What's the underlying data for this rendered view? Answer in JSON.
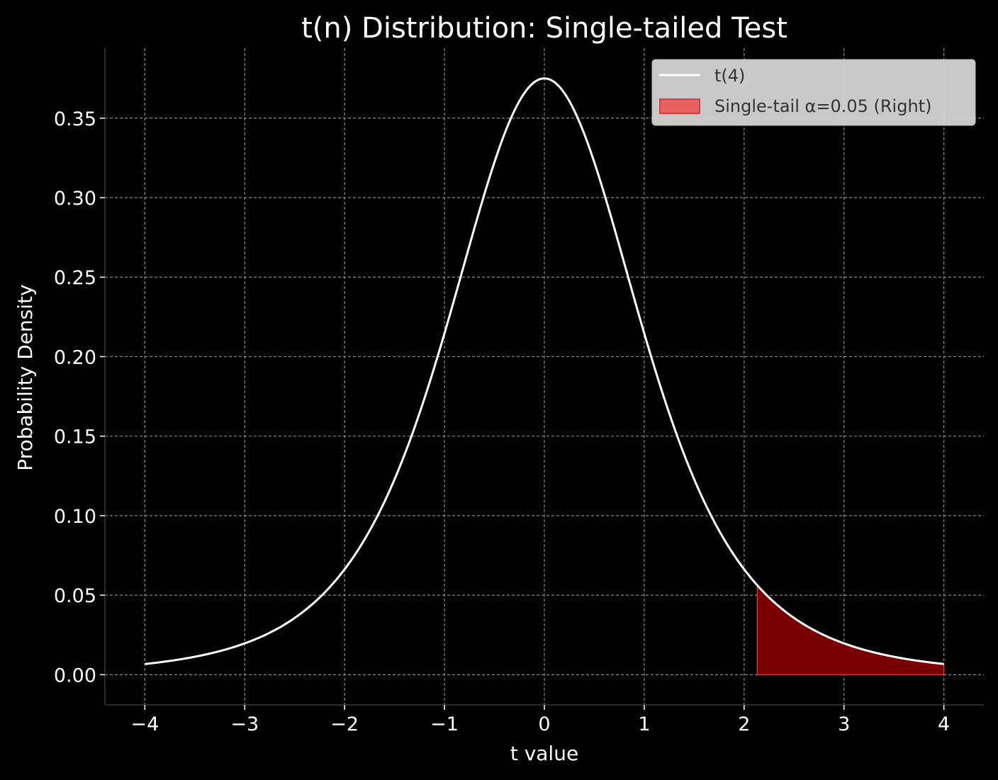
{
  "chart_data": {
    "type": "line",
    "title": "t(n) Distribution: Single-tailed Test",
    "xlabel": "t value",
    "ylabel": "Probability Density",
    "xlim": [
      -4.4,
      4.4
    ],
    "ylim": [
      -0.019,
      0.394
    ],
    "xticks": [
      -4,
      -3,
      -2,
      -1,
      0,
      1,
      2,
      3,
      4
    ],
    "xtick_labels": [
      "−4",
      "−3",
      "−2",
      "−1",
      "0",
      "1",
      "2",
      "3",
      "4"
    ],
    "yticks": [
      0,
      0.05,
      0.1,
      0.15,
      0.2,
      0.25,
      0.3,
      0.35
    ],
    "ytick_labels": [
      "0.00",
      "0.05",
      "0.10",
      "0.15",
      "0.20",
      "0.25",
      "0.30",
      "0.35"
    ],
    "grid": true,
    "legend_position": "top-right",
    "background_color": "#000000",
    "series": [
      {
        "name": "t(4)",
        "kind": "line",
        "color": "#ffffff",
        "degrees_of_freedom": 4,
        "x_range": [
          -4,
          4
        ],
        "x": [
          -4,
          -3.5,
          -3,
          -2.5,
          -2,
          -1.5,
          -1,
          -0.5,
          0,
          0.5,
          1,
          1.5,
          2,
          2.5,
          3,
          3.5,
          4
        ],
        "y": [
          0.0066,
          0.011,
          0.0197,
          0.0364,
          0.0663,
          0.1222,
          0.2147,
          0.322,
          0.375,
          0.322,
          0.2147,
          0.1222,
          0.0663,
          0.0364,
          0.0197,
          0.011,
          0.0066
        ]
      },
      {
        "name": "Single-tail α=0.05 (Right)",
        "kind": "area",
        "color": "#e05c5c",
        "fill_color": "#7a0000",
        "alpha": 0.05,
        "x_range": [
          2.132,
          4
        ]
      }
    ]
  }
}
